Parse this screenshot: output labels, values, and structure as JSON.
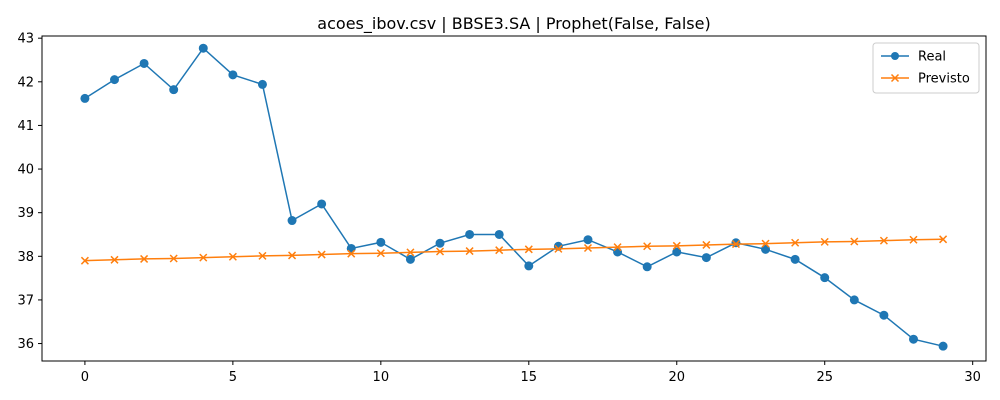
{
  "chart_data": {
    "type": "line",
    "title": "acoes_ibov.csv | BBSE3.SA | Prophet(False, False)",
    "xlabel": "",
    "ylabel": "",
    "xlim": [
      -1.45,
      30.45
    ],
    "ylim": [
      35.6,
      43.05
    ],
    "xticks": [
      0,
      5,
      10,
      15,
      20,
      25,
      30
    ],
    "yticks": [
      36,
      37,
      38,
      39,
      40,
      41,
      42,
      43
    ],
    "grid": false,
    "legend_position": "upper right",
    "x": [
      0,
      1,
      2,
      3,
      4,
      5,
      6,
      7,
      8,
      9,
      10,
      11,
      12,
      13,
      14,
      15,
      16,
      17,
      18,
      19,
      20,
      21,
      22,
      23,
      24,
      25,
      26,
      27,
      28,
      29
    ],
    "series": [
      {
        "name": "Real",
        "color": "#1f77b4",
        "marker": "circle",
        "values": [
          41.62,
          42.05,
          42.42,
          41.82,
          42.77,
          42.16,
          41.94,
          38.82,
          39.2,
          38.18,
          38.32,
          37.93,
          38.3,
          38.5,
          38.5,
          37.78,
          38.23,
          38.38,
          38.1,
          37.76,
          38.1,
          37.97,
          38.31,
          38.16,
          37.93,
          37.51,
          37.0,
          36.65,
          36.1,
          35.94
        ]
      },
      {
        "name": "Previsto",
        "color": "#ff7f0e",
        "marker": "x",
        "values": [
          37.9,
          37.92,
          37.94,
          37.95,
          37.97,
          37.99,
          38.01,
          38.02,
          38.04,
          38.06,
          38.07,
          38.09,
          38.11,
          38.12,
          38.14,
          38.16,
          38.17,
          38.19,
          38.21,
          38.23,
          38.24,
          38.26,
          38.28,
          38.29,
          38.31,
          38.33,
          38.34,
          38.36,
          38.38,
          38.39
        ]
      }
    ]
  }
}
